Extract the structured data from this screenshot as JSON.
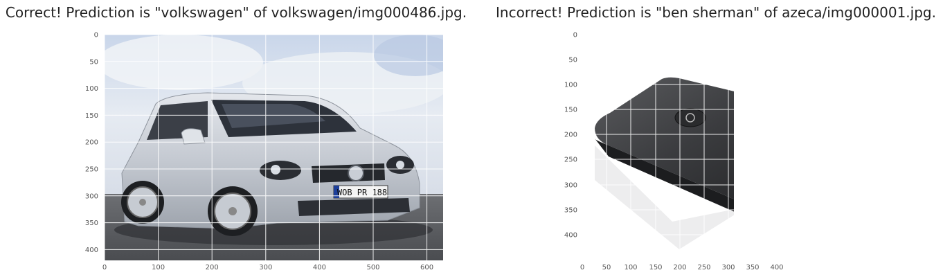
{
  "panels": [
    {
      "title": "Correct! Prediction is \"volkswagen\" of volkswagen/img000486.jpg.",
      "image_subject": "silver Volkswagen Golf hatchback",
      "license_plate": "WOB PR 188",
      "x_ticks": [
        "0",
        "100",
        "200",
        "300",
        "400",
        "500",
        "600"
      ],
      "y_ticks": [
        "0",
        "50",
        "100",
        "150",
        "200",
        "250",
        "300",
        "350",
        "400"
      ],
      "x_range": [
        0,
        630
      ],
      "y_range": [
        0,
        420
      ]
    },
    {
      "title": "Incorrect! Prediction is \"ben sherman\" of azeca/img000001.jpg.",
      "image_subject": "black AZECA bluetooth audio receiver",
      "device_brand": "AZECA",
      "x_ticks": [
        "0",
        "50",
        "100",
        "150",
        "200",
        "250",
        "300",
        "350",
        "400"
      ],
      "y_ticks": [
        "0",
        "50",
        "100",
        "150",
        "200",
        "250",
        "300",
        "350",
        "400"
      ],
      "x_range": [
        0,
        450
      ],
      "y_range": [
        0,
        450
      ]
    }
  ],
  "colors": {
    "grid": "#ffffff",
    "tick_text": "#555555",
    "axes_bg": "#eaeaf2"
  }
}
